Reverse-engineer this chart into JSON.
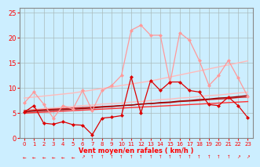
{
  "xlabel": "Vent moyen/en rafales ( km/h )",
  "xlabel_color": "#ff0000",
  "background_color": "#cceeff",
  "grid_color": "#aabbbb",
  "xlim": [
    -0.5,
    23.5
  ],
  "ylim": [
    0,
    26
  ],
  "yticks": [
    0,
    5,
    10,
    15,
    20,
    25
  ],
  "xticks": [
    0,
    1,
    2,
    3,
    4,
    5,
    6,
    7,
    8,
    9,
    10,
    11,
    12,
    13,
    14,
    15,
    16,
    17,
    18,
    19,
    20,
    21,
    22,
    23
  ],
  "line_pink_upper": {
    "y": [
      7.0,
      9.2,
      6.8,
      4.0,
      6.5,
      5.8,
      9.5,
      5.5,
      9.5,
      10.5,
      12.5,
      21.5,
      22.5,
      20.5,
      20.5,
      11.0,
      21.0,
      19.5,
      15.5,
      10.5,
      12.5,
      15.5,
      12.0,
      8.3
    ],
    "color": "#ff9999",
    "linewidth": 0.9,
    "marker": "D",
    "markersize": 2.5
  },
  "line_pink_trend_upper": {
    "y": [
      8.0,
      8.2,
      8.4,
      8.6,
      8.8,
      9.0,
      9.3,
      9.6,
      9.9,
      10.2,
      10.5,
      10.8,
      11.1,
      11.4,
      11.8,
      12.2,
      12.6,
      13.0,
      13.4,
      13.8,
      14.2,
      14.6,
      15.0,
      15.4
    ],
    "color": "#ffbbbb",
    "linewidth": 1.0
  },
  "line_pink_trend_lower": {
    "y": [
      5.5,
      5.7,
      5.9,
      6.0,
      6.2,
      6.3,
      6.5,
      6.6,
      6.8,
      6.9,
      7.0,
      7.2,
      7.3,
      7.5,
      7.7,
      7.8,
      8.0,
      8.1,
      8.3,
      8.5,
      8.6,
      8.8,
      9.0,
      9.2
    ],
    "color": "#ffbbbb",
    "linewidth": 1.0
  },
  "line_red_jagged": {
    "y": [
      5.2,
      6.5,
      3.0,
      2.8,
      3.3,
      2.7,
      2.6,
      0.7,
      4.0,
      4.2,
      4.5,
      12.2,
      5.0,
      11.5,
      9.5,
      11.2,
      11.2,
      9.5,
      9.2,
      6.7,
      6.5,
      8.2,
      6.5,
      4.1
    ],
    "color": "#dd0000",
    "linewidth": 0.9,
    "marker": "D",
    "markersize": 2.5
  },
  "line_darkred_trend1": {
    "y": [
      5.2,
      5.4,
      5.5,
      5.6,
      5.7,
      5.8,
      5.9,
      6.0,
      6.2,
      6.3,
      6.5,
      6.6,
      6.8,
      6.9,
      7.1,
      7.2,
      7.4,
      7.5,
      7.7,
      7.8,
      8.0,
      8.1,
      8.3,
      8.5
    ],
    "color": "#990000",
    "linewidth": 1.0
  },
  "line_red_trend2": {
    "y": [
      5.0,
      5.1,
      5.2,
      5.3,
      5.4,
      5.5,
      5.6,
      5.7,
      5.8,
      5.9,
      6.0,
      6.1,
      6.2,
      6.3,
      6.4,
      6.5,
      6.6,
      6.7,
      6.8,
      6.9,
      7.0,
      7.1,
      7.2,
      7.3
    ],
    "color": "#ff3333",
    "linewidth": 1.0
  },
  "line_red_trend3": {
    "y": [
      5.5,
      5.6,
      5.7,
      5.8,
      5.9,
      6.0,
      6.1,
      6.2,
      6.3,
      6.4,
      6.5,
      6.6,
      6.8,
      6.9,
      7.0,
      7.1,
      7.3,
      7.4,
      7.5,
      7.7,
      7.8,
      7.9,
      8.1,
      8.2
    ],
    "color": "#cc2222",
    "linewidth": 1.0
  },
  "arrows": [
    "←",
    "←",
    "←",
    "←",
    "←",
    "←",
    "↗",
    "↑",
    "↑",
    "↑",
    "↑",
    "↑",
    "↑",
    "↑",
    "↑",
    "↑",
    "↑",
    "↑",
    "↑",
    "↑",
    "↑",
    "↑",
    "↗",
    "↗"
  ]
}
